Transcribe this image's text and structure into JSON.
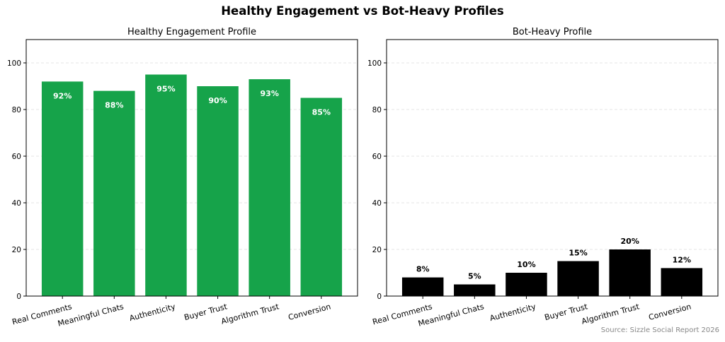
{
  "title": "Healthy Engagement vs Bot-Heavy Profiles",
  "source": "Source: Sizzle Social Report 2026",
  "colors": {
    "healthy": "#16a34a",
    "bot": "#000000",
    "healthy_label": "#ffffff",
    "bot_label": "#000000",
    "grid": "#dddddd"
  },
  "chart_data": [
    {
      "type": "bar",
      "title": "Healthy Engagement Profile",
      "categories": [
        "Real Comments",
        "Meaningful Chats",
        "Authenticity",
        "Buyer Trust",
        "Algorithm Trust",
        "Conversion"
      ],
      "values": [
        92,
        88,
        95,
        90,
        93,
        85
      ],
      "data_labels": [
        "92%",
        "88%",
        "95%",
        "90%",
        "93%",
        "85%"
      ],
      "ylim": [
        0,
        110
      ],
      "yticks": [
        0,
        20,
        40,
        60,
        80,
        100
      ],
      "grid": true,
      "label_position": "inside"
    },
    {
      "type": "bar",
      "title": "Bot-Heavy Profile",
      "categories": [
        "Real Comments",
        "Meaningful Chats",
        "Authenticity",
        "Buyer Trust",
        "Algorithm Trust",
        "Conversion"
      ],
      "values": [
        8,
        5,
        10,
        15,
        20,
        12
      ],
      "data_labels": [
        "8%",
        "5%",
        "10%",
        "15%",
        "20%",
        "12%"
      ],
      "ylim": [
        0,
        110
      ],
      "yticks": [
        0,
        20,
        40,
        60,
        80,
        100
      ],
      "grid": true,
      "label_position": "above"
    }
  ]
}
